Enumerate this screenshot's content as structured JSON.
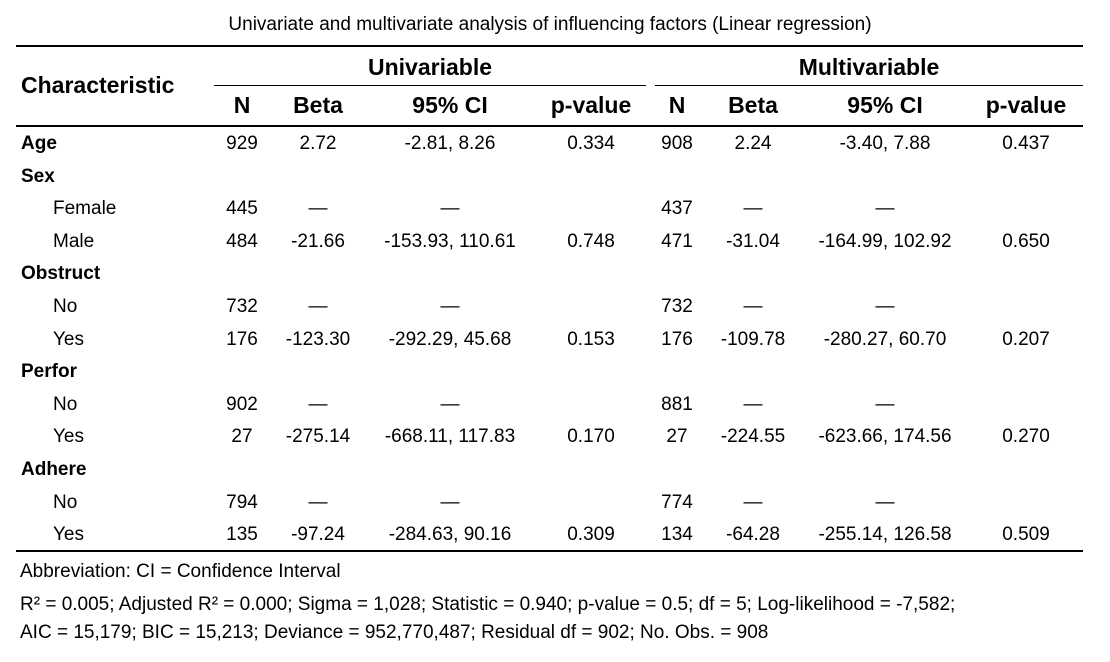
{
  "table": {
    "title": "Univariate and multivariate analysis of influencing factors (Linear regression)",
    "header": {
      "characteristic": "Characteristic",
      "group_univariable": "Univariable",
      "group_multivariable": "Multivariable",
      "columns": [
        "N",
        "Beta",
        "95% CI",
        "p-value",
        "N",
        "Beta",
        "95% CI",
        "p-value"
      ]
    },
    "rows": [
      {
        "label": "Age",
        "bold": true,
        "indent": false,
        "cells": [
          "929",
          "2.72",
          "-2.81, 8.26",
          "0.334",
          "908",
          "2.24",
          "-3.40, 7.88",
          "0.437"
        ]
      },
      {
        "label": "Sex",
        "bold": true,
        "indent": false,
        "cells": [
          "",
          "",
          "",
          "",
          "",
          "",
          "",
          ""
        ]
      },
      {
        "label": "Female",
        "bold": false,
        "indent": true,
        "cells": [
          "445",
          "—",
          "—",
          "",
          "437",
          "—",
          "—",
          ""
        ]
      },
      {
        "label": "Male",
        "bold": false,
        "indent": true,
        "cells": [
          "484",
          "-21.66",
          "-153.93, 110.61",
          "0.748",
          "471",
          "-31.04",
          "-164.99, 102.92",
          "0.650"
        ]
      },
      {
        "label": "Obstruct",
        "bold": true,
        "indent": false,
        "cells": [
          "",
          "",
          "",
          "",
          "",
          "",
          "",
          ""
        ]
      },
      {
        "label": "No",
        "bold": false,
        "indent": true,
        "cells": [
          "732",
          "—",
          "—",
          "",
          "732",
          "—",
          "—",
          ""
        ]
      },
      {
        "label": "Yes",
        "bold": false,
        "indent": true,
        "cells": [
          "176",
          "-123.30",
          "-292.29, 45.68",
          "0.153",
          "176",
          "-109.78",
          "-280.27, 60.70",
          "0.207"
        ]
      },
      {
        "label": "Perfor",
        "bold": true,
        "indent": false,
        "cells": [
          "",
          "",
          "",
          "",
          "",
          "",
          "",
          ""
        ]
      },
      {
        "label": "No",
        "bold": false,
        "indent": true,
        "cells": [
          "902",
          "—",
          "—",
          "",
          "881",
          "—",
          "—",
          ""
        ]
      },
      {
        "label": "Yes",
        "bold": false,
        "indent": true,
        "cells": [
          "27",
          "-275.14",
          "-668.11, 117.83",
          "0.170",
          "27",
          "-224.55",
          "-623.66, 174.56",
          "0.270"
        ]
      },
      {
        "label": "Adhere",
        "bold": true,
        "indent": false,
        "cells": [
          "",
          "",
          "",
          "",
          "",
          "",
          "",
          ""
        ]
      },
      {
        "label": "No",
        "bold": false,
        "indent": true,
        "cells": [
          "794",
          "—",
          "—",
          "",
          "774",
          "—",
          "—",
          ""
        ]
      },
      {
        "label": "Yes",
        "bold": false,
        "indent": true,
        "cells": [
          "135",
          "-97.24",
          "-284.63, 90.16",
          "0.309",
          "134",
          "-64.28",
          "-255.14, 126.58",
          "0.509"
        ]
      }
    ],
    "footnotes": {
      "abbreviation": "Abbreviation: CI = Confidence Interval",
      "stats_line1": "R² = 0.005; Adjusted R² = 0.000; Sigma = 1,028; Statistic = 0.940; p-value = 0.5; df = 5; Log-likelihood = -7,582;",
      "stats_line2": "AIC = 15,179; BIC = 15,213; Deviance = 952,770,487; Residual df = 902; No. Obs. = 908"
    }
  }
}
